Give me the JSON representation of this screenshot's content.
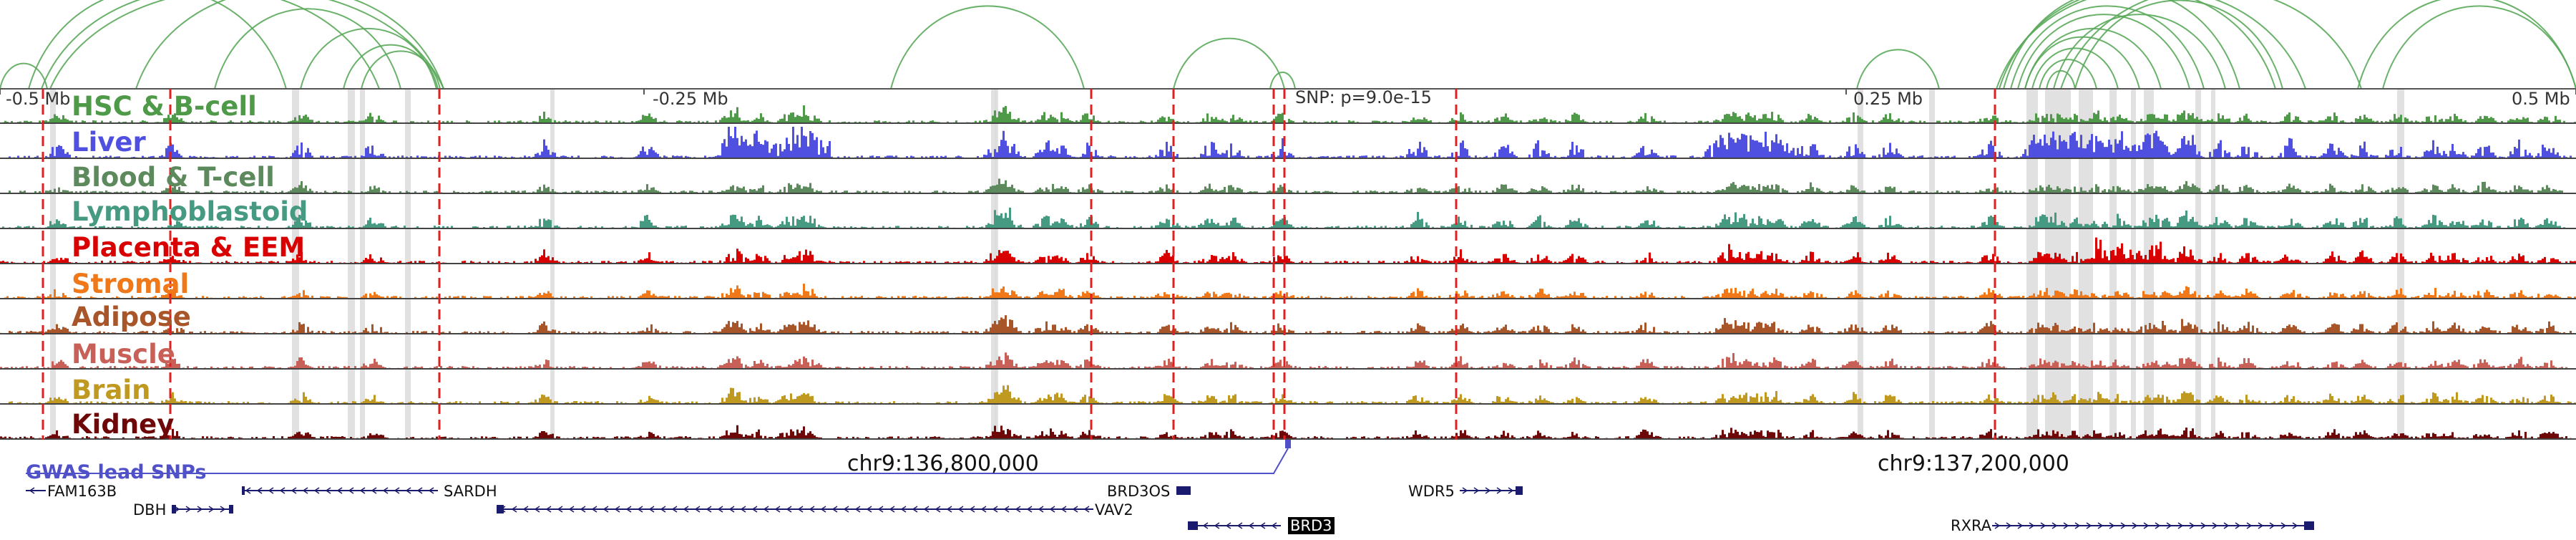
{
  "axis": {
    "ticks": [
      "-0.5 Mb",
      "-0.25 Mb",
      "0.25 Mb",
      "0.5 Mb"
    ],
    "snp_label": "SNP: p=9.0e-15"
  },
  "tracks": [
    {
      "label": "HSC & B-cell",
      "color": "#4e9a48",
      "seed": 11
    },
    {
      "label": "Liver",
      "color": "#4f4fe0",
      "seed": 23
    },
    {
      "label": "Blood & T-cell",
      "color": "#5c8a5c",
      "seed": 37
    },
    {
      "label": "Lymphoblastoid",
      "color": "#469a82",
      "seed": 41
    },
    {
      "label": "Placenta & EEM",
      "color": "#d80000",
      "seed": 53
    },
    {
      "label": "Stromal",
      "color": "#f07818",
      "seed": 67
    },
    {
      "label": "Adipose",
      "color": "#a8552a",
      "seed": 71
    },
    {
      "label": "Muscle",
      "color": "#c86058",
      "seed": 83
    },
    {
      "label": "Brain",
      "color": "#c09a20",
      "seed": 97
    },
    {
      "label": "Kidney",
      "color": "#6e0808",
      "seed": 101
    }
  ],
  "coordinates": {
    "left": "chr9:136,800,000",
    "right": "chr9:137,200,000"
  },
  "gwas_label": "GWAS lead SNPs",
  "genes": [
    {
      "name": "FAM163B",
      "label_pos": "right"
    },
    {
      "name": "SARDH",
      "label_pos": "right"
    },
    {
      "name": "BRD3OS",
      "label_pos": "left"
    },
    {
      "name": "WDR5",
      "label_pos": "left"
    },
    {
      "name": "DBH",
      "label_pos": "left"
    },
    {
      "name": "VAV2",
      "label_pos": "right"
    },
    {
      "name": "BRD3",
      "label_pos": "right",
      "highlighted": true
    },
    {
      "name": "RXRA",
      "label_pos": "left"
    }
  ],
  "colors": {
    "arc": "#5aa85a",
    "snp_line": "#e02020",
    "highlight_band": "#dcdcdc",
    "gene": "#1a1a6e",
    "gwas_line": "#5050c8"
  }
}
